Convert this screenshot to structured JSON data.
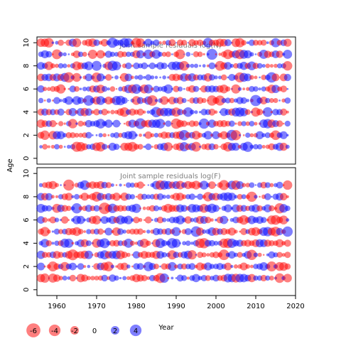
{
  "chart_data": {
    "type": "scatter",
    "ylabel": "Age",
    "xlabel": "Year",
    "xlim": [
      1955,
      2020
    ],
    "x_ticks": [
      1960,
      1970,
      1980,
      1990,
      2000,
      2010,
      2020
    ],
    "y_ticks": [
      0,
      2,
      4,
      6,
      8,
      10
    ],
    "years": [
      1956,
      2018
    ],
    "colors": {
      "positive": "#0000FF",
      "negative": "#FF0000"
    },
    "opacity": 0.5,
    "panels": [
      {
        "title": "Joint sample residuals log(N)",
        "ylim": [
          -0.5,
          10.5
        ],
        "ages": [
          1,
          2,
          3,
          4,
          5,
          6,
          7,
          8,
          9,
          10
        ],
        "seed": 17
      },
      {
        "title": "Joint sample residuals log(F)",
        "ylim": [
          -0.5,
          10.5
        ],
        "ages": [
          1,
          2,
          3,
          4,
          5,
          6,
          7,
          8,
          9
        ],
        "seed": 53
      }
    ],
    "legend": {
      "values": [
        -6,
        -4,
        -2,
        0,
        2,
        4
      ],
      "labels": [
        "-6",
        "-4",
        "-2",
        "0",
        "2",
        "4"
      ]
    }
  }
}
